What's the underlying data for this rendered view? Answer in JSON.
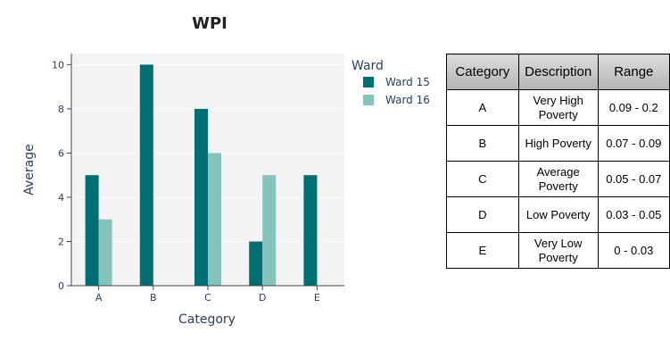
{
  "chart_data": {
    "type": "bar",
    "title": "WPI",
    "xlabel": "Category",
    "ylabel": "Average",
    "categories": [
      "A",
      "B",
      "C",
      "D",
      "E"
    ],
    "series": [
      {
        "name": "Ward 15",
        "values": [
          5,
          10,
          8,
          2,
          5
        ],
        "color": "#006f73"
      },
      {
        "name": "Ward 16",
        "values": [
          3,
          0,
          6,
          5,
          0
        ],
        "color": "#85c4bd"
      }
    ],
    "ylim": [
      0,
      10.5
    ],
    "yticks": [
      0,
      2,
      4,
      6,
      8,
      10
    ],
    "grid": true,
    "legend": {
      "title": "Ward",
      "placement": "top-right"
    },
    "plot_background": "#f3f3f3"
  },
  "table": {
    "headers": [
      "Category",
      "Description",
      "Range"
    ],
    "rows": [
      {
        "category": "A",
        "description": "Very High Poverty",
        "range": "0.09 - 0.2"
      },
      {
        "category": "B",
        "description": "High Poverty",
        "range": "0.07 - 0.09"
      },
      {
        "category": "C",
        "description": "Average Poverty",
        "range": "0.05 - 0.07"
      },
      {
        "category": "D",
        "description": "Low Poverty",
        "range": "0.03 - 0.05"
      },
      {
        "category": "E",
        "description": "Very Low Poverty",
        "range": "0 - 0.03"
      }
    ]
  }
}
